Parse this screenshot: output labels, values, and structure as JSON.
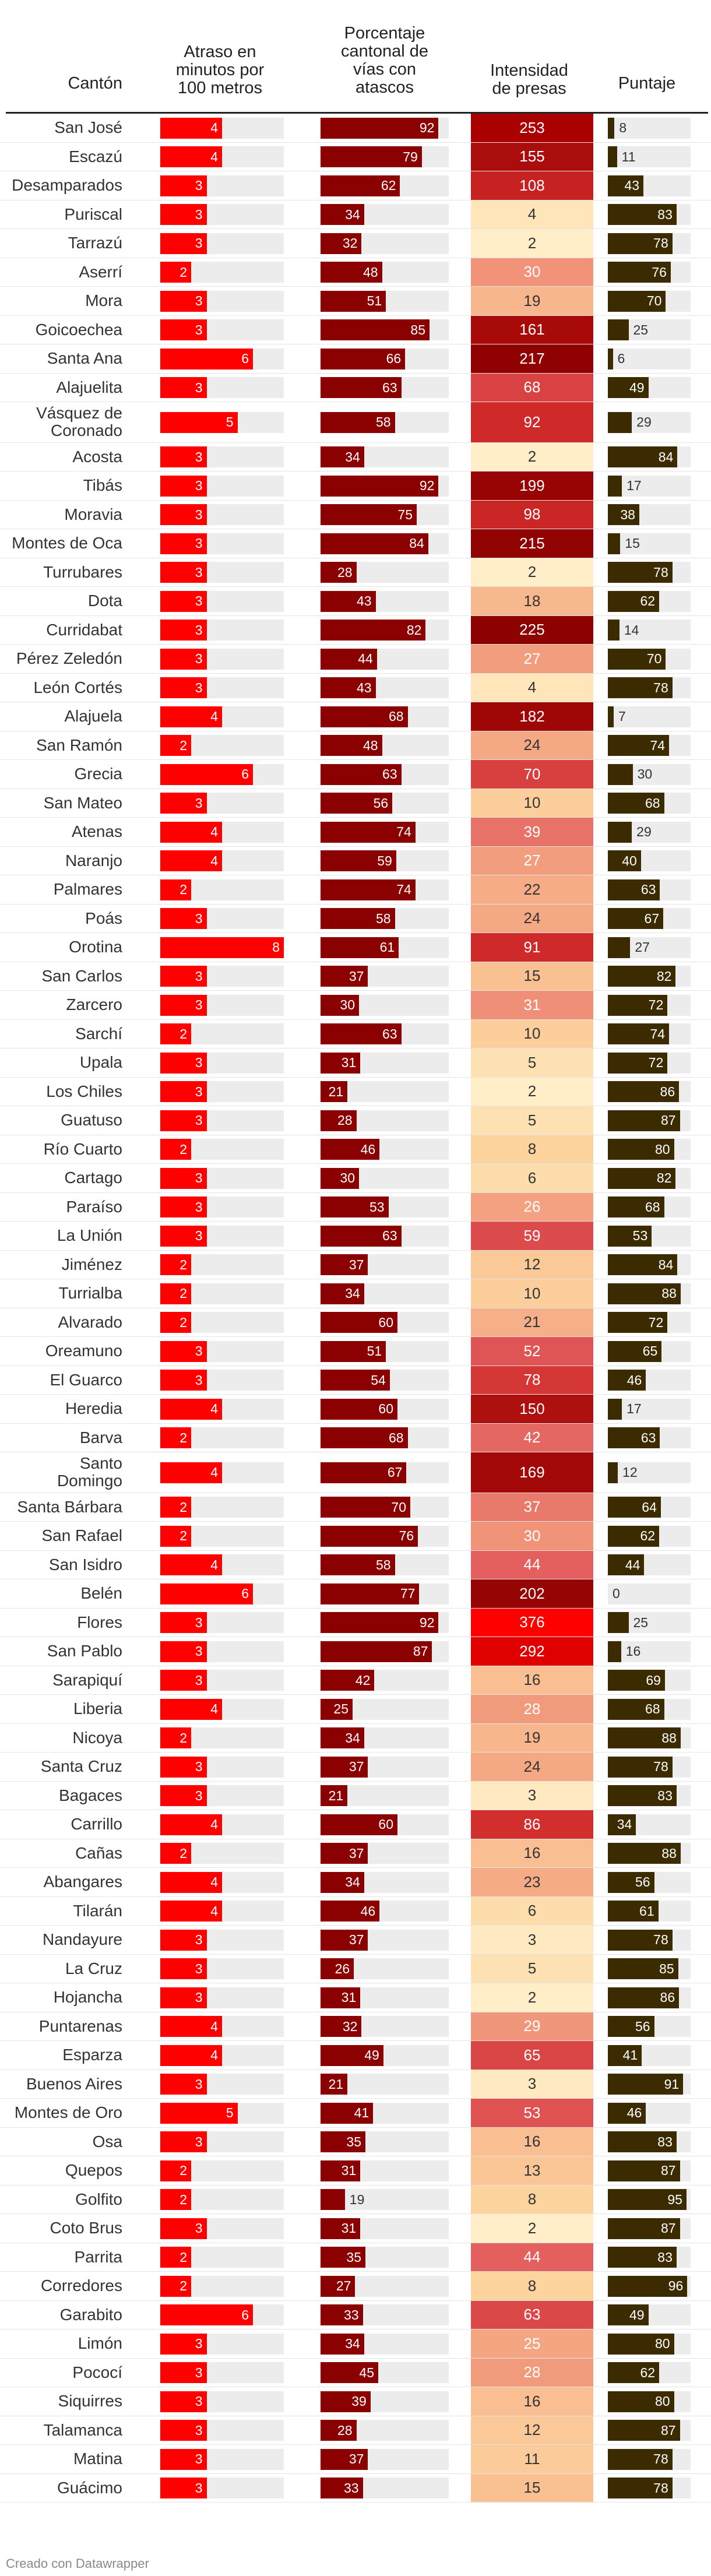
{
  "chart_data": {
    "type": "table",
    "columns": {
      "canton": "Cantón",
      "delay": "Atraso en minutos por 100 metros",
      "jam_pct": "Porcentaje cantonal de vías con atascos",
      "intensity": "Intensidad de presas",
      "score": "Puntaje"
    },
    "header_lines": {
      "canton": [
        "Cantón"
      ],
      "delay": [
        "Atraso en",
        "minutos por",
        "100 metros"
      ],
      "jam_pct": [
        "Porcentaje",
        "cantonal de",
        "vías con",
        "atascos"
      ],
      "intensity": [
        "Intensidad",
        "de presas"
      ],
      "score": [
        "Puntaje"
      ]
    },
    "scales": {
      "delay_max": 8,
      "jam_pct_max": 100,
      "intensity_max": 376,
      "score_max": 100
    },
    "rows": [
      {
        "name": [
          "San José"
        ],
        "delay": 4,
        "jam": 92,
        "intensity": 253,
        "score": 8
      },
      {
        "name": [
          "Escazú"
        ],
        "delay": 4,
        "jam": 79,
        "intensity": 155,
        "score": 11
      },
      {
        "name": [
          "Desamparados"
        ],
        "delay": 3,
        "jam": 62,
        "intensity": 108,
        "score": 43
      },
      {
        "name": [
          "Puriscal"
        ],
        "delay": 3,
        "jam": 34,
        "intensity": 4,
        "score": 83
      },
      {
        "name": [
          "Tarrazú"
        ],
        "delay": 3,
        "jam": 32,
        "intensity": 2,
        "score": 78
      },
      {
        "name": [
          "Aserrí"
        ],
        "delay": 2,
        "jam": 48,
        "intensity": 30,
        "score": 76
      },
      {
        "name": [
          "Mora"
        ],
        "delay": 3,
        "jam": 51,
        "intensity": 19,
        "score": 70
      },
      {
        "name": [
          "Goicoechea"
        ],
        "delay": 3,
        "jam": 85,
        "intensity": 161,
        "score": 25
      },
      {
        "name": [
          "Santa Ana"
        ],
        "delay": 6,
        "jam": 66,
        "intensity": 217,
        "score": 6
      },
      {
        "name": [
          "Alajuelita"
        ],
        "delay": 3,
        "jam": 63,
        "intensity": 68,
        "score": 49
      },
      {
        "name": [
          "Vásquez de",
          "Coronado"
        ],
        "delay": 5,
        "jam": 58,
        "intensity": 92,
        "score": 29
      },
      {
        "name": [
          "Acosta"
        ],
        "delay": 3,
        "jam": 34,
        "intensity": 2,
        "score": 84
      },
      {
        "name": [
          "Tibás"
        ],
        "delay": 3,
        "jam": 92,
        "intensity": 199,
        "score": 17
      },
      {
        "name": [
          "Moravia"
        ],
        "delay": 3,
        "jam": 75,
        "intensity": 98,
        "score": 38
      },
      {
        "name": [
          "Montes de Oca"
        ],
        "delay": 3,
        "jam": 84,
        "intensity": 215,
        "score": 15
      },
      {
        "name": [
          "Turrubares"
        ],
        "delay": 3,
        "jam": 28,
        "intensity": 2,
        "score": 78
      },
      {
        "name": [
          "Dota"
        ],
        "delay": 3,
        "jam": 43,
        "intensity": 18,
        "score": 62
      },
      {
        "name": [
          "Curridabat"
        ],
        "delay": 3,
        "jam": 82,
        "intensity": 225,
        "score": 14
      },
      {
        "name": [
          "Pérez Zeledón"
        ],
        "delay": 3,
        "jam": 44,
        "intensity": 27,
        "score": 70
      },
      {
        "name": [
          "León Cortés"
        ],
        "delay": 3,
        "jam": 43,
        "intensity": 4,
        "score": 78
      },
      {
        "name": [
          "Alajuela"
        ],
        "delay": 4,
        "jam": 68,
        "intensity": 182,
        "score": 7
      },
      {
        "name": [
          "San Ramón"
        ],
        "delay": 2,
        "jam": 48,
        "intensity": 24,
        "score": 74
      },
      {
        "name": [
          "Grecia"
        ],
        "delay": 6,
        "jam": 63,
        "intensity": 70,
        "score": 30
      },
      {
        "name": [
          "San Mateo"
        ],
        "delay": 3,
        "jam": 56,
        "intensity": 10,
        "score": 68
      },
      {
        "name": [
          "Atenas"
        ],
        "delay": 4,
        "jam": 74,
        "intensity": 39,
        "score": 29
      },
      {
        "name": [
          "Naranjo"
        ],
        "delay": 4,
        "jam": 59,
        "intensity": 27,
        "score": 40
      },
      {
        "name": [
          "Palmares"
        ],
        "delay": 2,
        "jam": 74,
        "intensity": 22,
        "score": 63
      },
      {
        "name": [
          "Poás"
        ],
        "delay": 3,
        "jam": 58,
        "intensity": 24,
        "score": 67
      },
      {
        "name": [
          "Orotina"
        ],
        "delay": 8,
        "jam": 61,
        "intensity": 91,
        "score": 27
      },
      {
        "name": [
          "San Carlos"
        ],
        "delay": 3,
        "jam": 37,
        "intensity": 15,
        "score": 82
      },
      {
        "name": [
          "Zarcero"
        ],
        "delay": 3,
        "jam": 30,
        "intensity": 31,
        "score": 72
      },
      {
        "name": [
          "Sarchí"
        ],
        "delay": 2,
        "jam": 63,
        "intensity": 10,
        "score": 74
      },
      {
        "name": [
          "Upala"
        ],
        "delay": 3,
        "jam": 31,
        "intensity": 5,
        "score": 72
      },
      {
        "name": [
          "Los Chiles"
        ],
        "delay": 3,
        "jam": 21,
        "intensity": 2,
        "score": 86
      },
      {
        "name": [
          "Guatuso"
        ],
        "delay": 3,
        "jam": 28,
        "intensity": 5,
        "score": 87
      },
      {
        "name": [
          "Río Cuarto"
        ],
        "delay": 2,
        "jam": 46,
        "intensity": 8,
        "score": 80
      },
      {
        "name": [
          "Cartago"
        ],
        "delay": 3,
        "jam": 30,
        "intensity": 6,
        "score": 82
      },
      {
        "name": [
          "Paraíso"
        ],
        "delay": 3,
        "jam": 53,
        "intensity": 26,
        "score": 68
      },
      {
        "name": [
          "La Unión"
        ],
        "delay": 3,
        "jam": 63,
        "intensity": 59,
        "score": 53
      },
      {
        "name": [
          "Jiménez"
        ],
        "delay": 2,
        "jam": 37,
        "intensity": 12,
        "score": 84
      },
      {
        "name": [
          "Turrialba"
        ],
        "delay": 2,
        "jam": 34,
        "intensity": 10,
        "score": 88
      },
      {
        "name": [
          "Alvarado"
        ],
        "delay": 2,
        "jam": 60,
        "intensity": 21,
        "score": 72
      },
      {
        "name": [
          "Oreamuno"
        ],
        "delay": 3,
        "jam": 51,
        "intensity": 52,
        "score": 65
      },
      {
        "name": [
          "El Guarco"
        ],
        "delay": 3,
        "jam": 54,
        "intensity": 78,
        "score": 46
      },
      {
        "name": [
          "Heredia"
        ],
        "delay": 4,
        "jam": 60,
        "intensity": 150,
        "score": 17
      },
      {
        "name": [
          "Barva"
        ],
        "delay": 2,
        "jam": 68,
        "intensity": 42,
        "score": 63
      },
      {
        "name": [
          "Santo",
          "Domingo"
        ],
        "delay": 4,
        "jam": 67,
        "intensity": 169,
        "score": 12
      },
      {
        "name": [
          "Santa Bárbara"
        ],
        "delay": 2,
        "jam": 70,
        "intensity": 37,
        "score": 64
      },
      {
        "name": [
          "San Rafael"
        ],
        "delay": 2,
        "jam": 76,
        "intensity": 30,
        "score": 62
      },
      {
        "name": [
          "San Isidro"
        ],
        "delay": 4,
        "jam": 58,
        "intensity": 44,
        "score": 44
      },
      {
        "name": [
          "Belén"
        ],
        "delay": 6,
        "jam": 77,
        "intensity": 202,
        "score": 0
      },
      {
        "name": [
          "Flores"
        ],
        "delay": 3,
        "jam": 92,
        "intensity": 376,
        "score": 25
      },
      {
        "name": [
          "San Pablo"
        ],
        "delay": 3,
        "jam": 87,
        "intensity": 292,
        "score": 16
      },
      {
        "name": [
          "Sarapiquí"
        ],
        "delay": 3,
        "jam": 42,
        "intensity": 16,
        "score": 69
      },
      {
        "name": [
          "Liberia"
        ],
        "delay": 4,
        "jam": 25,
        "intensity": 28,
        "score": 68
      },
      {
        "name": [
          "Nicoya"
        ],
        "delay": 2,
        "jam": 34,
        "intensity": 19,
        "score": 88
      },
      {
        "name": [
          "Santa Cruz"
        ],
        "delay": 3,
        "jam": 37,
        "intensity": 24,
        "score": 78
      },
      {
        "name": [
          "Bagaces"
        ],
        "delay": 3,
        "jam": 21,
        "intensity": 3,
        "score": 83
      },
      {
        "name": [
          "Carrillo"
        ],
        "delay": 4,
        "jam": 60,
        "intensity": 86,
        "score": 34
      },
      {
        "name": [
          "Cañas"
        ],
        "delay": 2,
        "jam": 37,
        "intensity": 16,
        "score": 88
      },
      {
        "name": [
          "Abangares"
        ],
        "delay": 4,
        "jam": 34,
        "intensity": 23,
        "score": 56
      },
      {
        "name": [
          "Tilarán"
        ],
        "delay": 4,
        "jam": 46,
        "intensity": 6,
        "score": 61
      },
      {
        "name": [
          "Nandayure"
        ],
        "delay": 3,
        "jam": 37,
        "intensity": 3,
        "score": 78
      },
      {
        "name": [
          "La Cruz"
        ],
        "delay": 3,
        "jam": 26,
        "intensity": 5,
        "score": 85
      },
      {
        "name": [
          "Hojancha"
        ],
        "delay": 3,
        "jam": 31,
        "intensity": 2,
        "score": 86
      },
      {
        "name": [
          "Puntarenas"
        ],
        "delay": 4,
        "jam": 32,
        "intensity": 29,
        "score": 56
      },
      {
        "name": [
          "Esparza"
        ],
        "delay": 4,
        "jam": 49,
        "intensity": 65,
        "score": 41
      },
      {
        "name": [
          "Buenos Aires"
        ],
        "delay": 3,
        "jam": 21,
        "intensity": 3,
        "score": 91
      },
      {
        "name": [
          "Montes de Oro"
        ],
        "delay": 5,
        "jam": 41,
        "intensity": 53,
        "score": 46
      },
      {
        "name": [
          "Osa"
        ],
        "delay": 3,
        "jam": 35,
        "intensity": 16,
        "score": 83
      },
      {
        "name": [
          "Quepos"
        ],
        "delay": 2,
        "jam": 31,
        "intensity": 13,
        "score": 87
      },
      {
        "name": [
          "Golfito"
        ],
        "delay": 2,
        "jam": 19,
        "intensity": 8,
        "score": 95
      },
      {
        "name": [
          "Coto Brus"
        ],
        "delay": 3,
        "jam": 31,
        "intensity": 2,
        "score": 87
      },
      {
        "name": [
          "Parrita"
        ],
        "delay": 2,
        "jam": 35,
        "intensity": 44,
        "score": 83
      },
      {
        "name": [
          "Corredores"
        ],
        "delay": 2,
        "jam": 27,
        "intensity": 8,
        "score": 96
      },
      {
        "name": [
          "Garabito"
        ],
        "delay": 6,
        "jam": 33,
        "intensity": 63,
        "score": 49
      },
      {
        "name": [
          "Limón"
        ],
        "delay": 3,
        "jam": 34,
        "intensity": 25,
        "score": 80
      },
      {
        "name": [
          "Pococí"
        ],
        "delay": 3,
        "jam": 45,
        "intensity": 28,
        "score": 62
      },
      {
        "name": [
          "Siquirres"
        ],
        "delay": 3,
        "jam": 39,
        "intensity": 16,
        "score": 80
      },
      {
        "name": [
          "Talamanca"
        ],
        "delay": 3,
        "jam": 28,
        "intensity": 12,
        "score": 87
      },
      {
        "name": [
          "Matina"
        ],
        "delay": 3,
        "jam": 37,
        "intensity": 11,
        "score": 78
      },
      {
        "name": [
          "Guácimo"
        ],
        "delay": 3,
        "jam": 33,
        "intensity": 15,
        "score": 78
      }
    ]
  },
  "colors": {
    "delay_bar": "#ff0000",
    "jam_bar": "#8b0000",
    "score_bar": "#3d2b00",
    "track": "#ececec",
    "heat_scale": [
      "#fff6d6",
      "#fdd49e",
      "#f4a582",
      "#ea6e6e",
      "#d63434",
      "#b00b0b",
      "#8b0000",
      "#e80000"
    ]
  },
  "footer": "Creado con Datawrapper"
}
